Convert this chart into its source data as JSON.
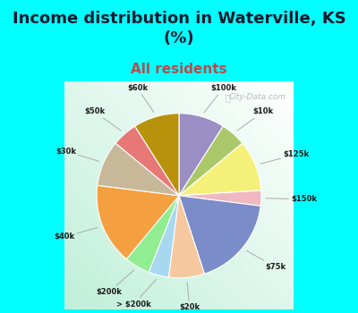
{
  "title": "Income distribution in Waterville, KS\n(%)",
  "subtitle": "All residents",
  "title_fontsize": 13,
  "subtitle_fontsize": 11,
  "title_color": "#1a1a2e",
  "subtitle_color": "#b05050",
  "background_color": "#00FFFF",
  "labels": [
    "$100k",
    "$10k",
    "$125k",
    "$150k",
    "$75k",
    "$20k",
    "> $200k",
    "$200k",
    "$40k",
    "$30k",
    "$50k",
    "$60k"
  ],
  "values": [
    9,
    5,
    10,
    3,
    18,
    7,
    4,
    5,
    16,
    9,
    5,
    9
  ],
  "colors": [
    "#9b8ec4",
    "#aac86a",
    "#f5f07a",
    "#f0b8c0",
    "#7b8dc8",
    "#f5c8a0",
    "#a8d8f0",
    "#90ee90",
    "#f5a040",
    "#c8b89a",
    "#e87878",
    "#b8920a"
  ],
  "watermark": "City-Data.com"
}
